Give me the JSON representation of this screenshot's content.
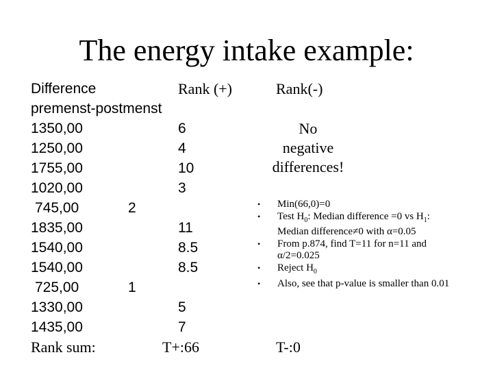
{
  "title": "The energy intake example:",
  "table": {
    "headers": {
      "difference": "Difference",
      "difference_line2": "premenst-postmenst",
      "rank_plus": "Rank (+)",
      "rank_minus": "Rank(-)"
    },
    "rows": [
      {
        "difference": "1350,00",
        "rank_plus": "6"
      },
      {
        "difference": "1250,00",
        "rank_plus": "4"
      },
      {
        "difference": "1755,00",
        "rank_plus": "10"
      },
      {
        "difference": "1020,00",
        "rank_plus": "3"
      },
      {
        "difference": "745,00",
        "rank_low": "2"
      },
      {
        "difference": "1835,00",
        "rank_plus": "11"
      },
      {
        "difference": "1540,00",
        "rank_plus": "8.5"
      },
      {
        "difference": "1540,00",
        "rank_plus": "8.5"
      },
      {
        "difference": "725,00",
        "rank_low": "1"
      },
      {
        "difference": "1330,00",
        "rank_plus": "5"
      },
      {
        "difference": "1435,00",
        "rank_plus": "7"
      }
    ],
    "rank_sum": {
      "label": "Rank sum:",
      "plus": "T+:66",
      "minus": "T-:0"
    }
  },
  "note": [
    "No",
    "negative",
    "differences!"
  ],
  "bullets": [
    [
      {
        "text": "Min(66,0)=0"
      }
    ],
    [
      {
        "text": "Test H"
      },
      {
        "sub": "0"
      },
      {
        "text": ": Median difference =0 vs H"
      },
      {
        "sub": "1"
      },
      {
        "text": ": Median difference≠0 with α=0.05"
      }
    ],
    [
      {
        "text": "From p.874, find T=11 for n=11 and α/2=0.025"
      }
    ],
    [
      {
        "text": "Reject H"
      },
      {
        "sub": "0"
      }
    ],
    [
      {
        "text": "Also, see that p-value is smaller than 0.01"
      }
    ]
  ]
}
